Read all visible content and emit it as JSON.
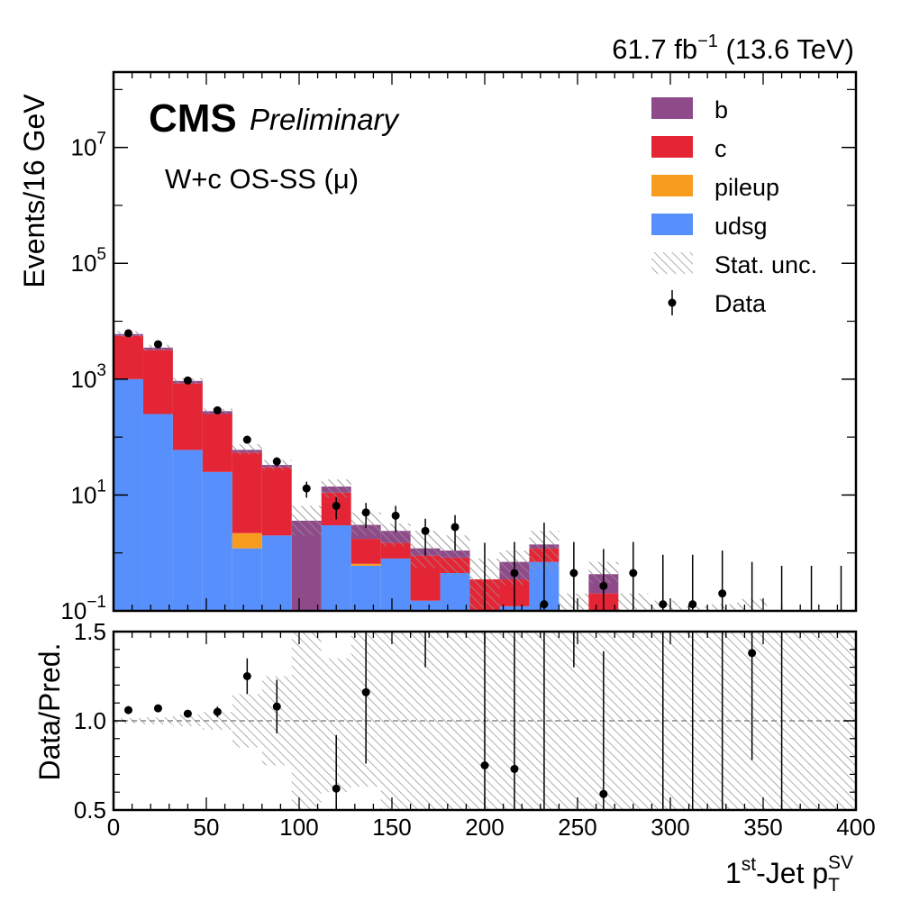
{
  "header": {
    "lumi_text": "61.7 fb",
    "lumi_sup": "−1",
    "energy_text": " (13.6 TeV)",
    "experiment": "CMS",
    "status": "Preliminary",
    "channel": "W+c OS-SS (μ)"
  },
  "colors": {
    "b": "#8f4a8a",
    "c": "#e42535",
    "pileup": "#f89c20",
    "udsg": "#5790fc",
    "data": "#000000",
    "unc_hatch": "#9a9a9a"
  },
  "chart_data": [
    {
      "type": "bar",
      "panel": "main",
      "stacked": true,
      "log_y": true,
      "x_bin_edges": [
        0,
        16,
        32,
        48,
        64,
        80,
        96,
        112,
        128,
        144,
        160,
        176,
        192,
        208,
        224,
        240,
        256,
        272,
        288,
        304,
        320,
        336,
        352,
        368,
        384,
        400
      ],
      "xlim": [
        0,
        400
      ],
      "ylim": [
        0.1,
        200000000
      ],
      "ylabel": "Events/16 GeV",
      "y_ticks": [
        {
          "value": 0.1,
          "base": "10",
          "exp": "−1"
        },
        {
          "value": 10,
          "base": "10",
          "exp": "1"
        },
        {
          "value": 1000,
          "base": "10",
          "exp": "3"
        },
        {
          "value": 100000,
          "base": "10",
          "exp": "5"
        },
        {
          "value": 10000000,
          "base": "10",
          "exp": "7"
        }
      ],
      "legend_position": "top-right",
      "legend": [
        {
          "key": "b",
          "label": "b",
          "kind": "fill"
        },
        {
          "key": "c",
          "label": "c",
          "kind": "fill"
        },
        {
          "key": "pileup",
          "label": "pileup",
          "kind": "fill"
        },
        {
          "key": "udsg",
          "label": "udsg",
          "kind": "fill"
        },
        {
          "key": "unc",
          "label": "Stat. unc.",
          "kind": "hatch"
        },
        {
          "key": "data",
          "label": "Data",
          "kind": "marker"
        }
      ],
      "series": [
        {
          "name": "udsg",
          "color_key": "udsg",
          "values": [
            1000,
            250,
            60,
            25,
            1.2,
            2,
            0,
            3,
            0.6,
            0.8,
            0.15,
            0.45,
            0,
            0.12,
            0.7,
            0,
            0,
            0,
            0,
            0,
            0,
            0,
            0,
            0,
            0
          ]
        },
        {
          "name": "pileup",
          "color_key": "pileup",
          "values": [
            0,
            0,
            0,
            0,
            1,
            0,
            0,
            0,
            0.05,
            0,
            0,
            0,
            0,
            0,
            0,
            0,
            0,
            0,
            0,
            0,
            0,
            0,
            0,
            0,
            0
          ]
        },
        {
          "name": "c",
          "color_key": "c",
          "values": [
            4600,
            2950,
            790,
            225,
            52,
            28,
            0,
            8,
            1.1,
            0.7,
            0.75,
            0.38,
            0.35,
            0.23,
            0.5,
            0,
            0.2,
            0,
            0,
            0,
            0,
            0,
            0,
            0,
            0
          ]
        },
        {
          "name": "b",
          "color_key": "b",
          "values": [
            400,
            300,
            80,
            30,
            6,
            3,
            3.6,
            3,
            1.3,
            0.9,
            0.3,
            0.27,
            0,
            0.35,
            0.2,
            0,
            0.23,
            0,
            0,
            0,
            0,
            0,
            0,
            0,
            0
          ]
        }
      ],
      "stat_unc_bands": [
        [
          5300,
          6700
        ],
        [
          3100,
          3900
        ],
        [
          820,
          1040
        ],
        [
          255,
          310
        ],
        [
          50,
          75
        ],
        [
          27,
          40
        ],
        [
          2,
          6.5
        ],
        [
          9,
          18.5
        ],
        [
          2,
          5
        ],
        [
          1.3,
          3.2
        ],
        [
          0.55,
          2.4
        ],
        [
          0.4,
          2
        ],
        [
          0.1,
          0.8
        ],
        [
          0.28,
          1.1
        ],
        [
          0.5,
          2.4
        ],
        [
          0.1,
          0.2
        ],
        [
          0.3,
          0.7
        ],
        [
          0.1,
          0.2
        ],
        [
          0.1,
          0.15
        ],
        [
          0.1,
          0.12
        ],
        [
          0.1,
          0.13
        ],
        [
          0.1,
          0.16
        ],
        [
          0.1,
          0.1
        ],
        [
          0.1,
          0.1
        ],
        [
          0.1,
          0.1
        ]
      ],
      "data": {
        "name": "Data",
        "x": [
          8,
          24,
          40,
          56,
          72,
          88,
          104,
          120,
          136,
          152,
          168,
          184,
          200,
          216,
          232,
          248,
          264,
          280,
          296,
          312,
          328,
          344,
          360,
          376,
          392
        ],
        "y": [
          6200,
          4000,
          950,
          290,
          90,
          38,
          13,
          6.5,
          5,
          4.4,
          2.4,
          2.8,
          null,
          0.45,
          0.13,
          0.45,
          0.27,
          0.45,
          0.13,
          0.13,
          0.2,
          null,
          null,
          null,
          null
        ],
        "err_lo": [
          80,
          65,
          30,
          17,
          10,
          7,
          4,
          2.7,
          2.3,
          2.1,
          1.5,
          1.7,
          null,
          0.35,
          null,
          null,
          0.2,
          null,
          null,
          null,
          null,
          null,
          null,
          null,
          null
        ],
        "err_hi": [
          80,
          65,
          30,
          17,
          10,
          7,
          4,
          2.7,
          2.3,
          2.1,
          1.5,
          1.7,
          1.5,
          1.1,
          3.2,
          1.1,
          0.9,
          1.1,
          0.8,
          0.8,
          0.9,
          0.7,
          0.6,
          0.6,
          0.6
        ]
      }
    },
    {
      "type": "scatter",
      "panel": "ratio",
      "xlim": [
        0,
        400
      ],
      "ylim": [
        0.5,
        1.5
      ],
      "x_ticks": [
        0,
        50,
        100,
        150,
        200,
        250,
        300,
        350,
        400
      ],
      "y_ticks": [
        "0.5",
        "1.0",
        "1.5"
      ],
      "xlabel_prefix": "1",
      "xlabel_sup": "st",
      "xlabel_mid": "-Jet p",
      "xlabel_sub": "T",
      "xlabel_sup2": "SV",
      "ylabel": "Data/Pred.",
      "reference_line": 1.0,
      "unc_bands": [
        [
          0.985,
          1.015
        ],
        [
          0.98,
          1.02
        ],
        [
          0.97,
          1.035
        ],
        [
          0.95,
          1.05
        ],
        [
          0.85,
          1.15
        ],
        [
          0.75,
          1.25
        ],
        [
          0.5,
          1.5
        ],
        [
          0.6,
          1.35
        ],
        [
          0.63,
          1.5
        ],
        [
          0.5,
          1.5
        ],
        [
          0.5,
          1.5
        ],
        [
          0.5,
          1.5
        ],
        [
          0.5,
          1.5
        ],
        [
          0.5,
          1.5
        ],
        [
          0.5,
          1.5
        ],
        [
          0.5,
          1.5
        ],
        [
          0.5,
          1.5
        ],
        [
          0.5,
          1.5
        ],
        [
          0.5,
          1.5
        ],
        [
          0.5,
          1.5
        ],
        [
          0.5,
          1.5
        ],
        [
          0.5,
          1.5
        ],
        [
          0.5,
          1.5
        ],
        [
          0.5,
          1.5
        ],
        [
          0.5,
          1.5
        ]
      ],
      "x": [
        8,
        24,
        40,
        56,
        72,
        88,
        104,
        120,
        136,
        152,
        168,
        184,
        200,
        216,
        232,
        248,
        264,
        280,
        296,
        312,
        328,
        344,
        360,
        376,
        392
      ],
      "y": [
        1.06,
        1.07,
        1.04,
        1.05,
        1.25,
        1.08,
        null,
        0.62,
        1.16,
        null,
        null,
        null,
        0.75,
        0.73,
        null,
        null,
        0.59,
        null,
        null,
        null,
        null,
        1.38,
        null,
        null,
        null
      ],
      "err_lo": [
        0.01,
        0.01,
        0.02,
        0.03,
        0.1,
        0.15,
        null,
        0.3,
        0.4,
        null,
        null,
        null,
        0.6,
        0.6,
        null,
        null,
        0.6,
        null,
        null,
        null,
        null,
        0.6,
        null,
        null,
        null
      ],
      "err_hi": [
        0.01,
        0.01,
        0.02,
        0.03,
        0.1,
        0.15,
        null,
        0.3,
        0.4,
        null,
        null,
        null,
        0.8,
        0.8,
        null,
        null,
        0.8,
        null,
        null,
        null,
        null,
        0.8,
        null,
        null,
        null
      ],
      "partial_errors": [
        {
          "x": 216,
          "lo": 1.5,
          "hi": 1.5
        },
        {
          "x": 232,
          "lo": 0.5,
          "hi": 1.5
        },
        {
          "x": 248,
          "lo": 1.3,
          "hi": 1.5
        },
        {
          "x": 296,
          "lo": 0.5,
          "hi": 1.5
        },
        {
          "x": 312,
          "lo": 0.5,
          "hi": 1.5
        },
        {
          "x": 328,
          "lo": 0.5,
          "hi": 1.5
        },
        {
          "x": 360,
          "lo": 0.5,
          "hi": 1.5
        },
        {
          "x": 168,
          "lo": 1.3,
          "hi": 1.5
        }
      ]
    }
  ]
}
